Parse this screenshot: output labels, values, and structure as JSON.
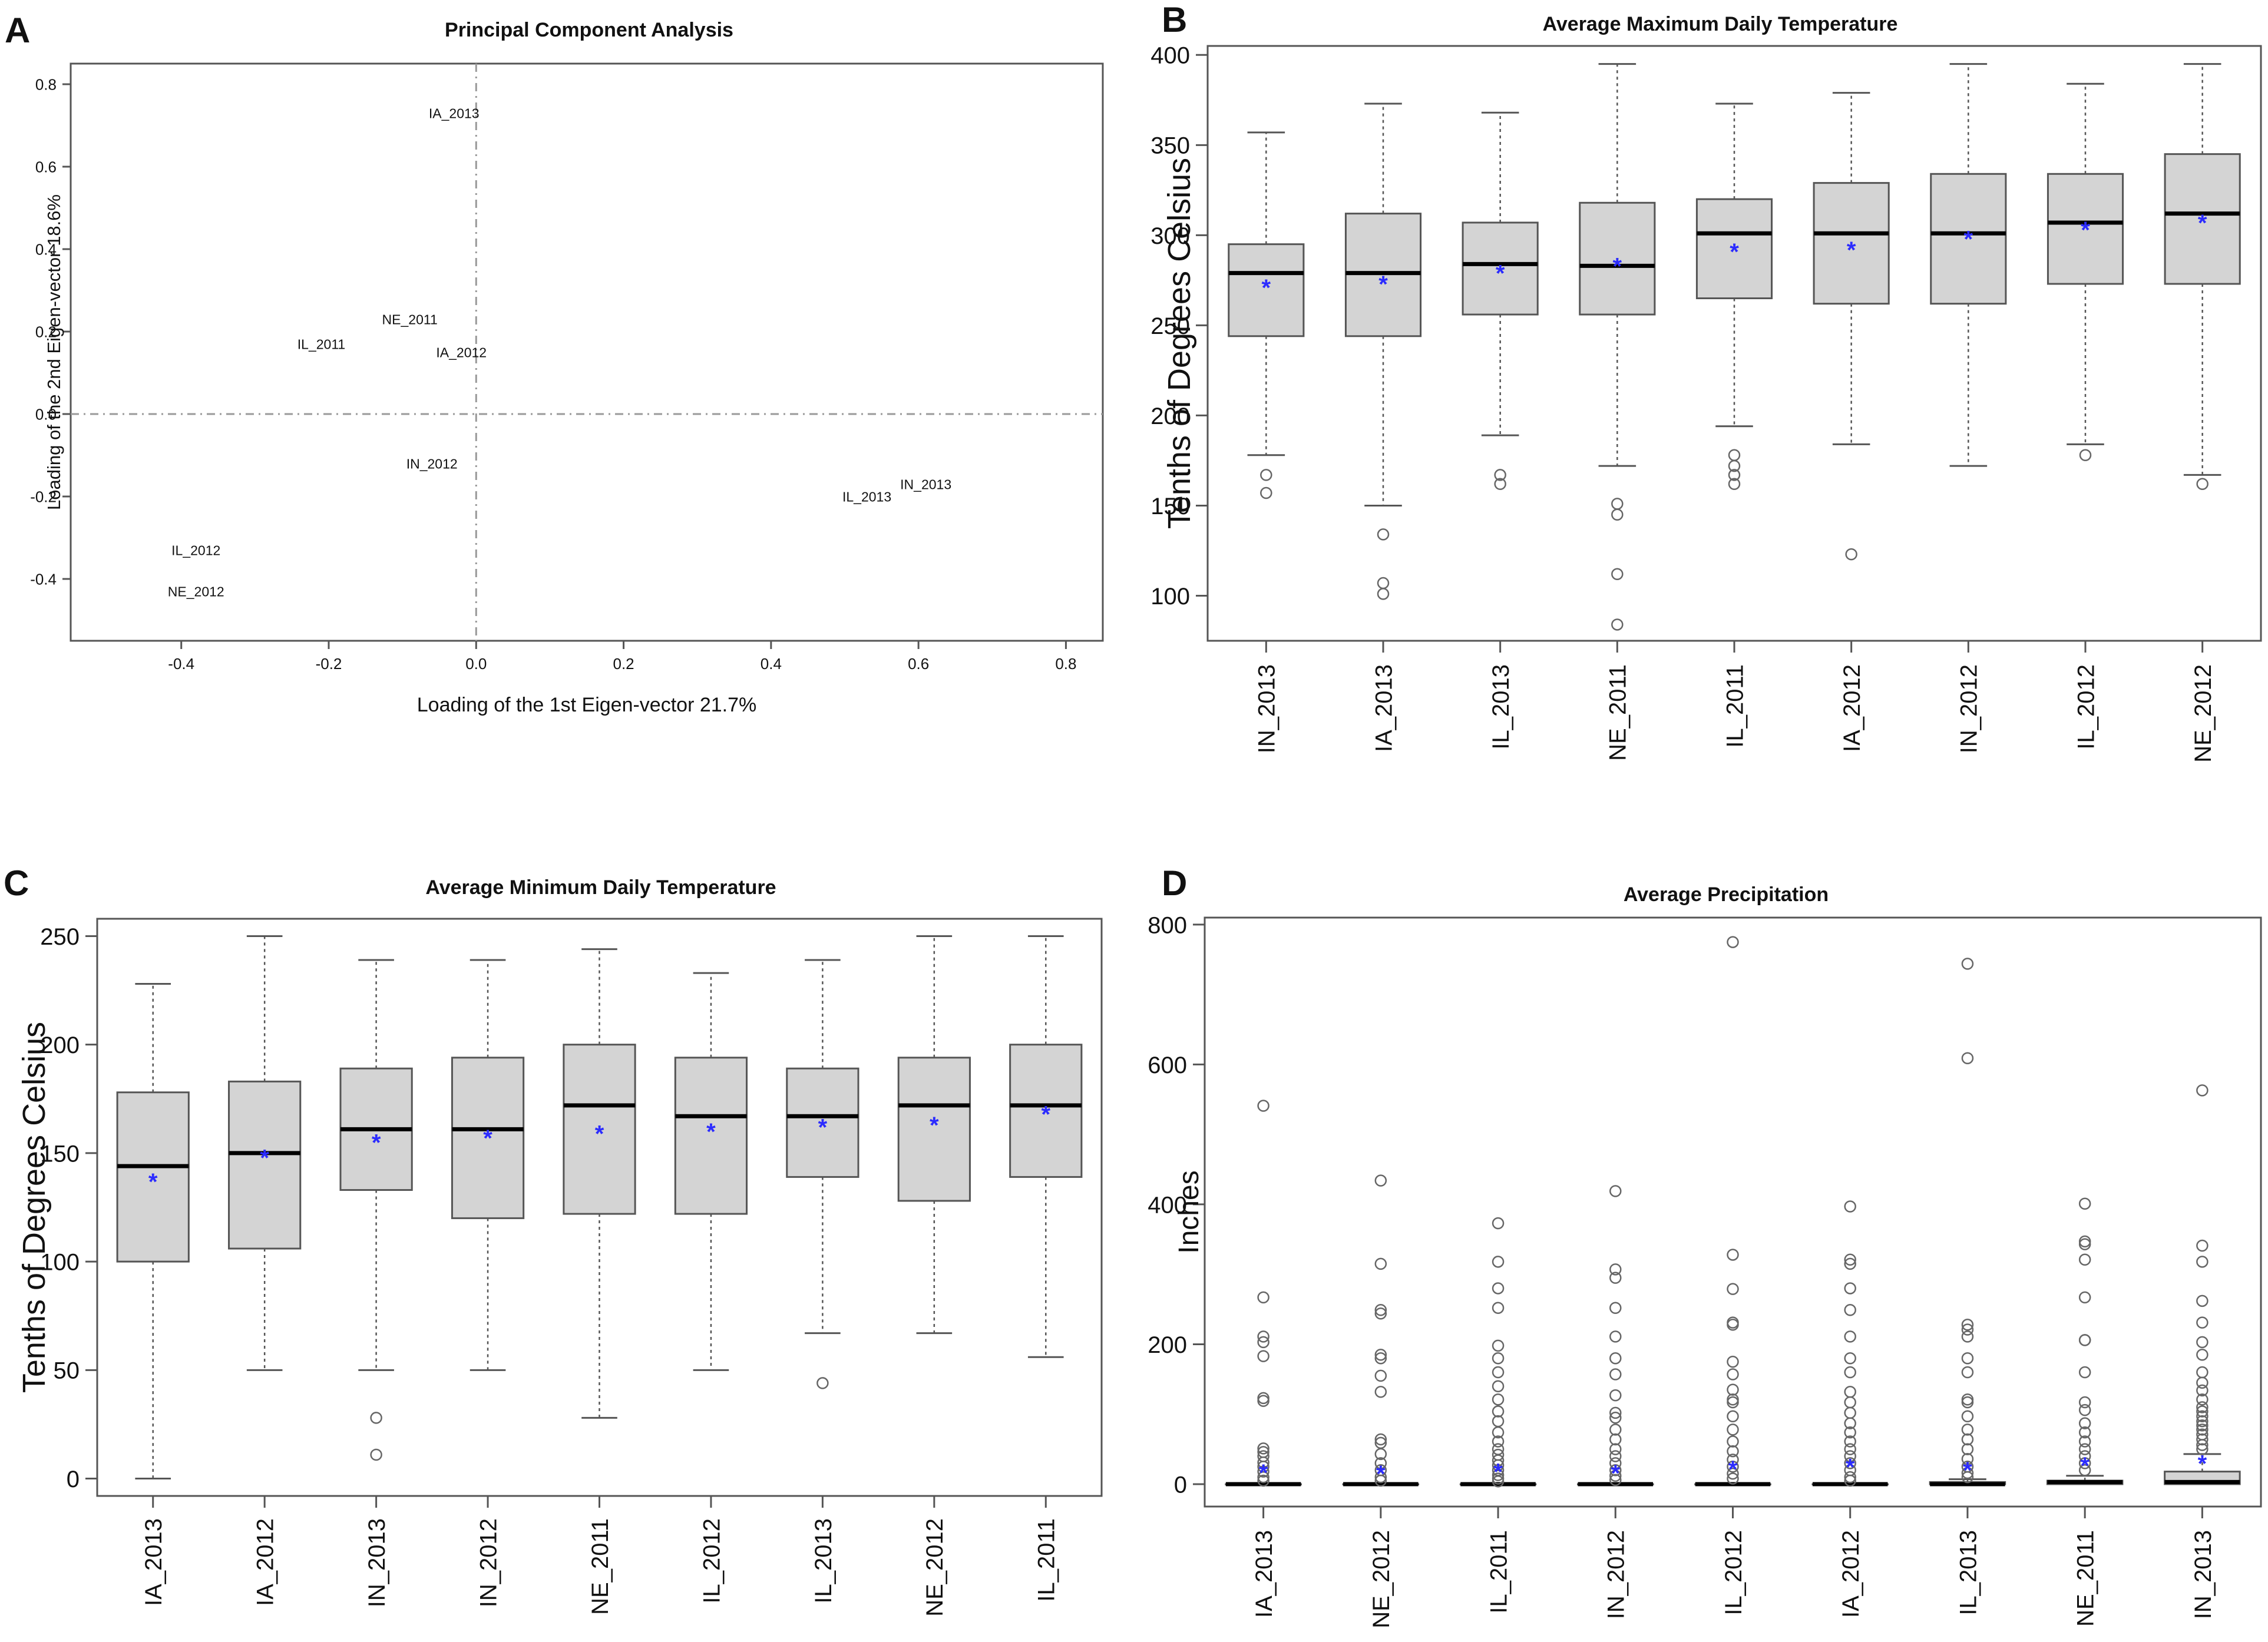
{
  "chart_data": [
    {
      "panel_label": "A",
      "type": "scatter",
      "title": "Principal Component Analysis",
      "xlabel": "Loading of the 1st Eigen-vector 21.7%",
      "ylabel": "Loading of the 2nd Eigen-vector 18.6%",
      "xlim": [
        -0.55,
        0.85
      ],
      "ylim": [
        -0.55,
        0.85
      ],
      "x_ticks": [
        -0.4,
        -0.2,
        0.0,
        0.2,
        0.4,
        0.6,
        0.8
      ],
      "x_tick_labels": [
        "-0.4",
        "-0.2",
        "0.0",
        "0.2",
        "0.4",
        "0.6",
        "0.8"
      ],
      "y_ticks": [
        -0.4,
        -0.2,
        0.0,
        0.2,
        0.4,
        0.6,
        0.8
      ],
      "y_tick_labels": [
        "-0.4",
        "-0.2",
        "0.0",
        "0.2",
        "0.4",
        "0.6",
        "0.8"
      ],
      "points": [
        {
          "label": "IA_2013",
          "x": -0.03,
          "y": 0.73
        },
        {
          "label": "NE_2011",
          "x": -0.09,
          "y": 0.23
        },
        {
          "label": "IL_2011",
          "x": -0.21,
          "y": 0.17
        },
        {
          "label": "IA_2012",
          "x": -0.02,
          "y": 0.15
        },
        {
          "label": "IN_2012",
          "x": -0.06,
          "y": -0.12
        },
        {
          "label": "IL_2013",
          "x": 0.53,
          "y": -0.2
        },
        {
          "label": "IN_2013",
          "x": 0.61,
          "y": -0.17
        },
        {
          "label": "IL_2012",
          "x": -0.38,
          "y": -0.33
        },
        {
          "label": "NE_2012",
          "x": -0.38,
          "y": -0.43
        }
      ]
    },
    {
      "panel_label": "B",
      "type": "boxplot",
      "title": "Average Maximum Daily Temperature",
      "ylabel": "Tenths of Degrees Celsius",
      "xlabel": "",
      "ylim": [
        75,
        405
      ],
      "y_ticks": [
        100,
        150,
        200,
        250,
        300,
        350,
        400
      ],
      "y_tick_labels": [
        "100",
        "150",
        "200",
        "250",
        "300",
        "350",
        "400"
      ],
      "categories": [
        "IN_2013",
        "IA_2013",
        "IL_2013",
        "NE_2011",
        "IL_2011",
        "IA_2012",
        "IN_2012",
        "IL_2012",
        "NE_2012"
      ],
      "boxes": [
        {
          "whisker_low": 178,
          "q1": 244,
          "median": 279,
          "q3": 295,
          "whisker_high": 357,
          "mean": 271,
          "outliers": [
            167,
            157
          ]
        },
        {
          "whisker_low": 150,
          "q1": 244,
          "median": 279,
          "q3": 312,
          "whisker_high": 373,
          "mean": 273,
          "outliers": [
            134,
            107,
            101
          ]
        },
        {
          "whisker_low": 189,
          "q1": 256,
          "median": 284,
          "q3": 307,
          "whisker_high": 368,
          "mean": 279,
          "outliers": [
            167,
            162
          ]
        },
        {
          "whisker_low": 172,
          "q1": 256,
          "median": 283,
          "q3": 318,
          "whisker_high": 395,
          "mean": 283,
          "outliers": [
            151,
            145,
            112,
            84
          ]
        },
        {
          "whisker_low": 194,
          "q1": 265,
          "median": 301,
          "q3": 320,
          "whisker_high": 373,
          "mean": 291,
          "outliers": [
            178,
            172,
            167,
            162
          ]
        },
        {
          "whisker_low": 184,
          "q1": 262,
          "median": 301,
          "q3": 329,
          "whisker_high": 379,
          "mean": 292,
          "outliers": [
            123
          ]
        },
        {
          "whisker_low": 172,
          "q1": 262,
          "median": 301,
          "q3": 334,
          "whisker_high": 395,
          "mean": 298,
          "outliers": []
        },
        {
          "whisker_low": 184,
          "q1": 273,
          "median": 307,
          "q3": 334,
          "whisker_high": 384,
          "mean": 303,
          "outliers": [
            178
          ]
        },
        {
          "whisker_low": 167,
          "q1": 273,
          "median": 312,
          "q3": 345,
          "whisker_high": 395,
          "mean": 307,
          "outliers": [
            162
          ]
        }
      ]
    },
    {
      "panel_label": "C",
      "type": "boxplot",
      "title": "Average Minimum Daily Temperature",
      "ylabel": "Tenths of Degrees Celsius",
      "xlabel": "",
      "ylim": [
        -8,
        258
      ],
      "y_ticks": [
        0,
        50,
        100,
        150,
        200,
        250
      ],
      "y_tick_labels": [
        "0",
        "50",
        "100",
        "150",
        "200",
        "250"
      ],
      "categories": [
        "IA_2013",
        "IA_2012",
        "IN_2013",
        "IN_2012",
        "NE_2011",
        "IL_2012",
        "IL_2013",
        "NE_2012",
        "IL_2011"
      ],
      "boxes": [
        {
          "whisker_low": 0,
          "q1": 100,
          "median": 144,
          "q3": 178,
          "whisker_high": 228,
          "mean": 137,
          "outliers": []
        },
        {
          "whisker_low": 50,
          "q1": 106,
          "median": 150,
          "q3": 183,
          "whisker_high": 250,
          "mean": 148,
          "outliers": []
        },
        {
          "whisker_low": 50,
          "q1": 133,
          "median": 161,
          "q3": 189,
          "whisker_high": 239,
          "mean": 155,
          "outliers": [
            28,
            11
          ]
        },
        {
          "whisker_low": 50,
          "q1": 120,
          "median": 161,
          "q3": 194,
          "whisker_high": 239,
          "mean": 157,
          "outliers": []
        },
        {
          "whisker_low": 28,
          "q1": 122,
          "median": 172,
          "q3": 200,
          "whisker_high": 244,
          "mean": 159,
          "outliers": []
        },
        {
          "whisker_low": 50,
          "q1": 122,
          "median": 167,
          "q3": 194,
          "whisker_high": 233,
          "mean": 160,
          "outliers": []
        },
        {
          "whisker_low": 67,
          "q1": 139,
          "median": 167,
          "q3": 189,
          "whisker_high": 239,
          "mean": 162,
          "outliers": [
            44
          ]
        },
        {
          "whisker_low": 67,
          "q1": 128,
          "median": 172,
          "q3": 194,
          "whisker_high": 250,
          "mean": 163,
          "outliers": []
        },
        {
          "whisker_low": 56,
          "q1": 139,
          "median": 172,
          "q3": 200,
          "whisker_high": 250,
          "mean": 168,
          "outliers": []
        }
      ]
    },
    {
      "panel_label": "D",
      "type": "boxplot",
      "title": "Average Precipitation",
      "ylabel": "Inches",
      "xlabel": "",
      "ylim": [
        -32,
        810
      ],
      "y_ticks": [
        0,
        200,
        400,
        600,
        800
      ],
      "y_tick_labels": [
        "0",
        "200",
        "400",
        "600",
        "800"
      ],
      "categories": [
        "IA_2013",
        "NE_2012",
        "IL_2011",
        "IN_2012",
        "IL_2012",
        "IA_2012",
        "IL_2013",
        "NE_2011",
        "IN_2013"
      ],
      "boxes": [
        {
          "whisker_low": 0,
          "q1": 0,
          "median": 0,
          "q3": 0,
          "whisker_high": 0,
          "mean": 17,
          "outliers": [
            541,
            267,
            211,
            203,
            183,
            123,
            119,
            51,
            46,
            40,
            31,
            25,
            18,
            10,
            5
          ]
        },
        {
          "whisker_low": 0,
          "q1": 0,
          "median": 0,
          "q3": 0,
          "whisker_high": 0,
          "mean": 15,
          "outliers": [
            434,
            315,
            249,
            244,
            185,
            180,
            155,
            132,
            64,
            59,
            43,
            30,
            20,
            10,
            5
          ]
        },
        {
          "whisker_low": 0,
          "q1": 0,
          "median": 0,
          "q3": 0,
          "whisker_high": 0,
          "mean": 18,
          "outliers": [
            373,
            318,
            280,
            252,
            198,
            180,
            160,
            140,
            121,
            104,
            90,
            74,
            61,
            50,
            42,
            34,
            27,
            20,
            13,
            8,
            4
          ]
        },
        {
          "whisker_low": 0,
          "q1": 0,
          "median": 0,
          "q3": 0,
          "whisker_high": 0,
          "mean": 16,
          "outliers": [
            419,
            307,
            295,
            252,
            211,
            180,
            157,
            127,
            102,
            95,
            78,
            64,
            50,
            40,
            30,
            20,
            12,
            6
          ]
        },
        {
          "whisker_low": 0,
          "q1": 0,
          "median": 0,
          "q3": 0,
          "whisker_high": 0,
          "mean": 22,
          "outliers": [
            775,
            328,
            279,
            231,
            228,
            175,
            157,
            135,
            121,
            117,
            97,
            78,
            61,
            47,
            35,
            25,
            15,
            8
          ]
        },
        {
          "whisker_low": 0,
          "q1": 0,
          "median": 0,
          "q3": 0,
          "whisker_high": 0,
          "mean": 25,
          "outliers": [
            397,
            321,
            315,
            280,
            249,
            211,
            180,
            160,
            132,
            117,
            102,
            87,
            74,
            61,
            50,
            40,
            30,
            20,
            10,
            5
          ]
        },
        {
          "whisker_low": 0,
          "q1": 0,
          "median": 0,
          "q3": 3,
          "whisker_high": 7,
          "mean": 20,
          "outliers": [
            744,
            609,
            228,
            221,
            211,
            180,
            160,
            121,
            117,
            97,
            78,
            64,
            50,
            36,
            25,
            16,
            10
          ]
        },
        {
          "whisker_low": 0,
          "q1": 0,
          "median": 3,
          "q3": 5,
          "whisker_high": 12,
          "mean": 27,
          "outliers": [
            401,
            347,
            343,
            321,
            267,
            206,
            206,
            160,
            117,
            106,
            87,
            74,
            61,
            50,
            40,
            30,
            20
          ]
        },
        {
          "whisker_low": 0,
          "q1": 0,
          "median": 3,
          "q3": 18,
          "whisker_high": 43,
          "mean": 30,
          "outliers": [
            563,
            341,
            318,
            262,
            231,
            203,
            185,
            160,
            145,
            134,
            121,
            110,
            104,
            97,
            90,
            84,
            78,
            71,
            64,
            56,
            50
          ]
        }
      ]
    }
  ],
  "colors": {
    "box_fill": "#d4d4d4",
    "mean_marker": "#2b2bff",
    "text": "#111111",
    "frame": "#555555",
    "guide": "#999999"
  }
}
